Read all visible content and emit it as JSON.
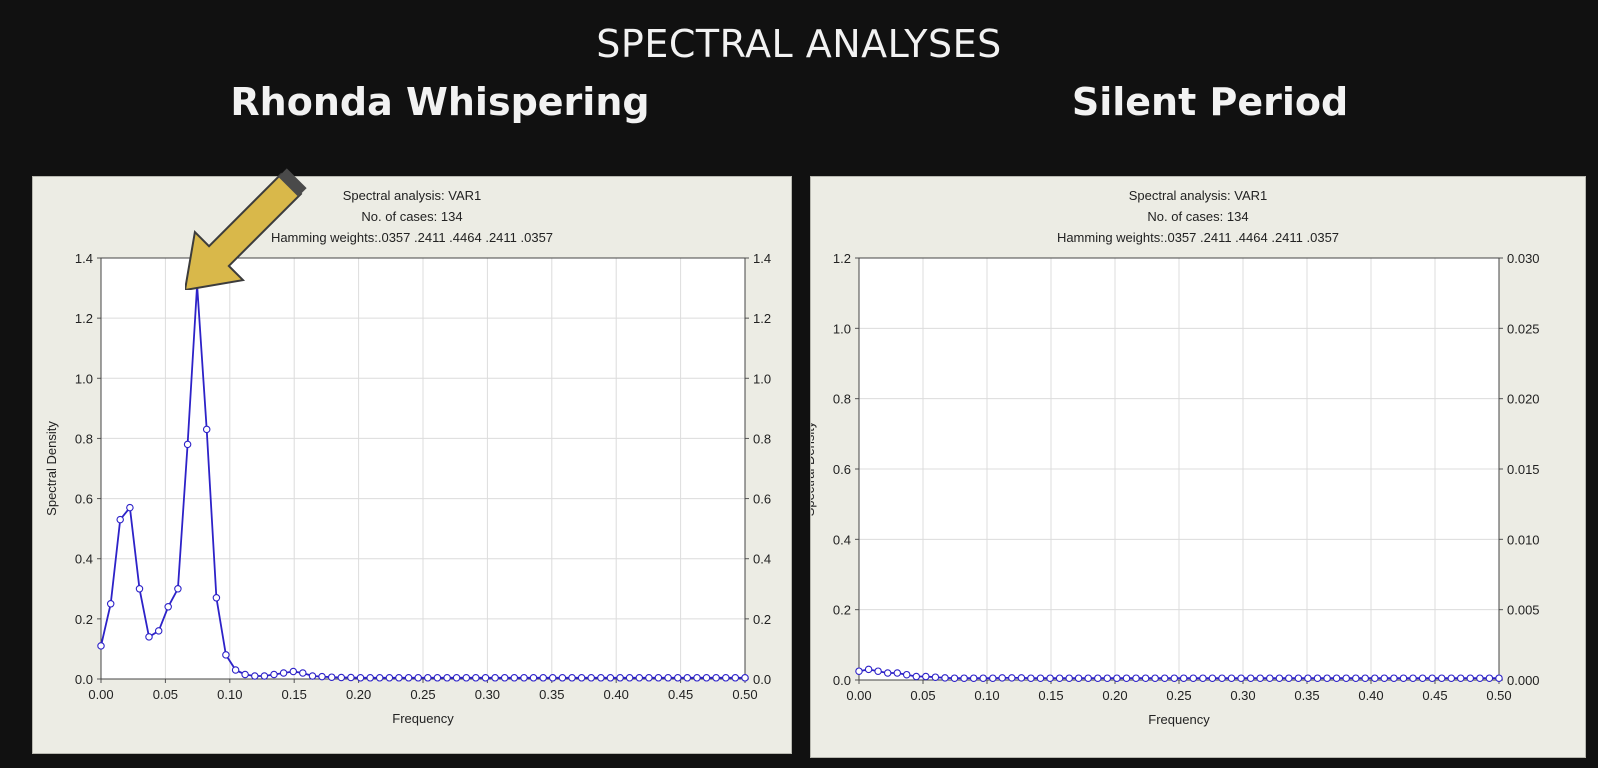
{
  "slide": {
    "title": "SPECTRAL ANALYSES",
    "left_heading": "Rhonda Whispering",
    "right_heading": "Silent Period"
  },
  "annotation": {
    "arrow_color": "#d9b84a",
    "icon": "arrow-icon"
  },
  "chart_data": [
    {
      "type": "line",
      "header": [
        "Spectral analysis: VAR1",
        "No. of cases: 134",
        "Hamming weights:.0357 .2411 .4464 .2411 .0357"
      ],
      "xlabel": "Frequency",
      "ylabel": "Spectral Density",
      "xlim": [
        0,
        0.5
      ],
      "ylim": [
        0,
        1.4
      ],
      "y2lim": [
        0,
        1.4
      ],
      "xticks": [
        "0.00",
        "0.05",
        "0.10",
        "0.15",
        "0.20",
        "0.25",
        "0.30",
        "0.35",
        "0.40",
        "0.45",
        "0.50"
      ],
      "yticks": [
        "0.0",
        "0.2",
        "0.4",
        "0.6",
        "0.8",
        "1.0",
        "1.2",
        "1.4"
      ],
      "y2ticks": [
        "0.0",
        "0.2",
        "0.4",
        "0.6",
        "0.8",
        "1.0",
        "1.2",
        "1.4"
      ],
      "grid": true,
      "line_color": "#2d22c8",
      "x": [
        0.0,
        0.0075,
        0.0149,
        0.0224,
        0.0299,
        0.0373,
        0.0448,
        0.0522,
        0.0597,
        0.0672,
        0.0746,
        0.0821,
        0.0896,
        0.097,
        0.1045,
        0.1119,
        0.1194,
        0.1269,
        0.1343,
        0.1418,
        0.1493,
        0.1567,
        0.1642,
        0.1716,
        0.1791,
        0.1866,
        0.194,
        0.2015,
        0.209,
        0.2164,
        0.2239,
        0.2313,
        0.2388,
        0.2463,
        0.2537,
        0.2612,
        0.2687,
        0.2761,
        0.2836,
        0.291,
        0.2985,
        0.306,
        0.3134,
        0.3209,
        0.3284,
        0.3358,
        0.3433,
        0.3507,
        0.3582,
        0.3657,
        0.3731,
        0.3806,
        0.3881,
        0.3955,
        0.403,
        0.4104,
        0.4179,
        0.4254,
        0.4328,
        0.4403,
        0.4478,
        0.4552,
        0.4627,
        0.4701,
        0.4776,
        0.4851,
        0.4925,
        0.5
      ],
      "values": [
        0.11,
        0.25,
        0.53,
        0.57,
        0.3,
        0.14,
        0.16,
        0.24,
        0.3,
        0.78,
        1.31,
        0.83,
        0.27,
        0.08,
        0.03,
        0.015,
        0.01,
        0.01,
        0.015,
        0.02,
        0.025,
        0.02,
        0.01,
        0.008,
        0.006,
        0.005,
        0.005,
        0.004,
        0.004,
        0.004,
        0.004,
        0.004,
        0.004,
        0.004,
        0.004,
        0.004,
        0.004,
        0.004,
        0.004,
        0.004,
        0.004,
        0.004,
        0.004,
        0.004,
        0.004,
        0.004,
        0.004,
        0.004,
        0.004,
        0.004,
        0.004,
        0.004,
        0.004,
        0.004,
        0.004,
        0.004,
        0.004,
        0.004,
        0.004,
        0.004,
        0.004,
        0.004,
        0.004,
        0.004,
        0.004,
        0.004,
        0.004,
        0.004
      ]
    },
    {
      "type": "line",
      "header": [
        "Spectral analysis: VAR1",
        "No. of cases: 134",
        "Hamming weights:.0357 .2411 .4464 .2411 .0357"
      ],
      "xlabel": "Frequency",
      "ylabel": "Spectral Density",
      "xlim": [
        0,
        0.5
      ],
      "ylim": [
        0,
        1.2
      ],
      "y2lim": [
        0,
        0.03
      ],
      "xticks": [
        "0.00",
        "0.05",
        "0.10",
        "0.15",
        "0.20",
        "0.25",
        "0.30",
        "0.35",
        "0.40",
        "0.45",
        "0.50"
      ],
      "yticks": [
        "0.0",
        "0.2",
        "0.4",
        "0.6",
        "0.8",
        "1.0",
        "1.2"
      ],
      "y2ticks": [
        "0.000",
        "0.005",
        "0.010",
        "0.015",
        "0.020",
        "0.025",
        "0.030"
      ],
      "grid": true,
      "line_color": "#2d22c8",
      "x": [
        0.0,
        0.0075,
        0.0149,
        0.0224,
        0.0299,
        0.0373,
        0.0448,
        0.0522,
        0.0597,
        0.0672,
        0.0746,
        0.0821,
        0.0896,
        0.097,
        0.1045,
        0.1119,
        0.1194,
        0.1269,
        0.1343,
        0.1418,
        0.1493,
        0.1567,
        0.1642,
        0.1716,
        0.1791,
        0.1866,
        0.194,
        0.2015,
        0.209,
        0.2164,
        0.2239,
        0.2313,
        0.2388,
        0.2463,
        0.2537,
        0.2612,
        0.2687,
        0.2761,
        0.2836,
        0.291,
        0.2985,
        0.306,
        0.3134,
        0.3209,
        0.3284,
        0.3358,
        0.3433,
        0.3507,
        0.3582,
        0.3657,
        0.3731,
        0.3806,
        0.3881,
        0.3955,
        0.403,
        0.4104,
        0.4179,
        0.4254,
        0.4328,
        0.4403,
        0.4478,
        0.4552,
        0.4627,
        0.4701,
        0.4776,
        0.4851,
        0.4925,
        0.5
      ],
      "values": [
        0.025,
        0.03,
        0.025,
        0.02,
        0.02,
        0.015,
        0.01,
        0.01,
        0.008,
        0.006,
        0.005,
        0.005,
        0.005,
        0.005,
        0.005,
        0.006,
        0.006,
        0.006,
        0.005,
        0.005,
        0.005,
        0.005,
        0.005,
        0.005,
        0.005,
        0.005,
        0.005,
        0.005,
        0.005,
        0.005,
        0.005,
        0.005,
        0.005,
        0.005,
        0.005,
        0.005,
        0.005,
        0.005,
        0.005,
        0.005,
        0.005,
        0.005,
        0.005,
        0.005,
        0.005,
        0.005,
        0.005,
        0.005,
        0.005,
        0.005,
        0.005,
        0.005,
        0.005,
        0.005,
        0.005,
        0.005,
        0.005,
        0.005,
        0.005,
        0.005,
        0.005,
        0.005,
        0.005,
        0.005,
        0.005,
        0.005,
        0.005,
        0.005
      ]
    }
  ]
}
